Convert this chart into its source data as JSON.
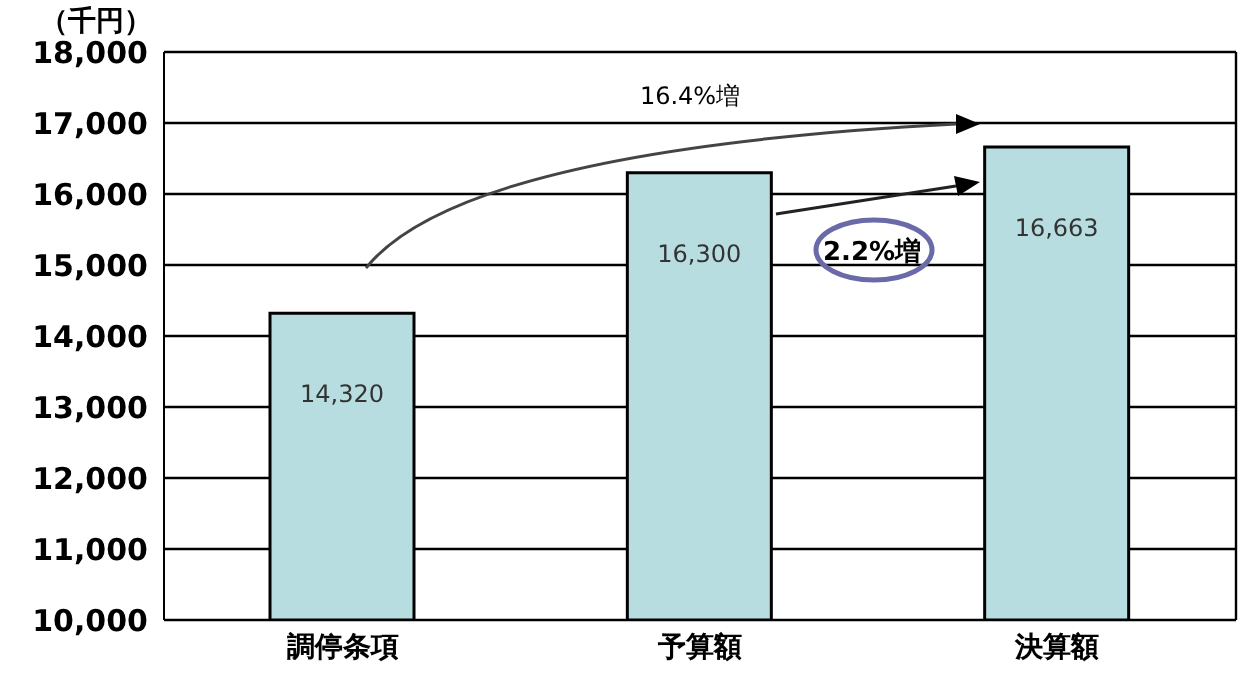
{
  "chart_data": {
    "type": "bar",
    "ylabel": "（千円）",
    "categories": [
      "調停条項",
      "予算額",
      "決算額"
    ],
    "values": [
      14320,
      16300,
      16663
    ],
    "color": "#b7dde0",
    "ylim": [
      10000,
      18000
    ],
    "yticks": [
      {
        "value": 10000,
        "label": "10,000"
      },
      {
        "value": 11000,
        "label": "11,000"
      },
      {
        "value": 12000,
        "label": "12,000"
      },
      {
        "value": 13000,
        "label": "13,000"
      },
      {
        "value": 14000,
        "label": "14,000"
      },
      {
        "value": 15000,
        "label": "15,000"
      },
      {
        "value": 16000,
        "label": "16,000"
      },
      {
        "value": 17000,
        "label": "17,000"
      },
      {
        "value": 18000,
        "label": "18,000"
      }
    ],
    "grid": "y",
    "value_labels": [
      "14,320",
      "16,300",
      "16,663"
    ],
    "annotations": [
      "16.4%増",
      "2.2%増"
    ]
  }
}
